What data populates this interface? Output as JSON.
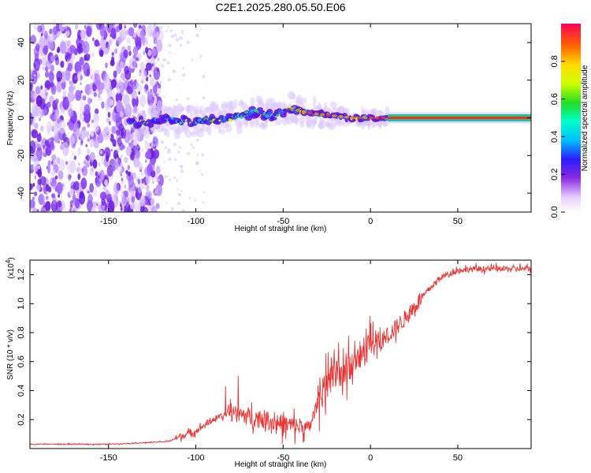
{
  "title": "C2E1.2025.280.05.50.E06",
  "chart_data": [
    {
      "type": "heatmap",
      "name": "spectrogram",
      "xlabel": "Height of straight line (km)",
      "ylabel": "Frequency (Hz)",
      "xlim": [
        -195,
        92
      ],
      "ylim": [
        -50,
        50
      ],
      "x_ticks": [
        -150,
        -100,
        -50,
        0,
        50
      ],
      "x_tick_labels": [
        "-150",
        "-100",
        "-50",
        "0",
        "50"
      ],
      "y_ticks": [
        -40,
        -20,
        0,
        20,
        40
      ],
      "y_tick_labels": [
        "-40",
        "-20",
        "0",
        "20",
        "40"
      ],
      "colorbar": {
        "label": "Normalized spectral amplitude",
        "range": [
          0,
          1
        ],
        "ticks": [
          0,
          0.2,
          0.4,
          0.6,
          0.8
        ],
        "tick_labels": [
          "0.0",
          "0.2",
          "0.4",
          "0.6",
          "0.8"
        ]
      },
      "ridge": {
        "x": [
          -138,
          -120,
          -100,
          -80,
          -65,
          -55,
          -45,
          -38,
          -30,
          -20,
          -10,
          0,
          10,
          20,
          50,
          90
        ],
        "y": [
          -3,
          -1,
          -2,
          0,
          3,
          1,
          5,
          3,
          2,
          1,
          0,
          0,
          0,
          0,
          0,
          0
        ]
      }
    },
    {
      "type": "line",
      "name": "snr",
      "xlabel": "Height of straight line (km)",
      "ylabel": "SNR (10 * v/v)",
      "y_multiplier": "(x10",
      "y_multiplier_exp": "4",
      "y_multiplier_close": ")",
      "xlim": [
        -195,
        92
      ],
      "ylim": [
        0,
        1.3
      ],
      "x_ticks": [
        -150,
        -100,
        -50,
        0,
        50
      ],
      "x_tick_labels": [
        "-150",
        "-100",
        "-50",
        "0",
        "50"
      ],
      "y_ticks": [
        0.2,
        0.4,
        0.6,
        0.8,
        1.0,
        1.2
      ],
      "y_tick_labels": [
        "0.2",
        "0.4",
        "0.6",
        "0.8",
        "1.0",
        "1.2"
      ],
      "series": [
        {
          "name": "SNR",
          "color": "#ee3333",
          "x": [
            -195,
            -170,
            -150,
            -130,
            -115,
            -110,
            -100,
            -90,
            -80,
            -70,
            -60,
            -50,
            -40,
            -35,
            -30,
            -25,
            -20,
            -15,
            -10,
            -5,
            0,
            10,
            20,
            30,
            40,
            50,
            60,
            70,
            80,
            92
          ],
          "y": [
            0.03,
            0.03,
            0.03,
            0.04,
            0.05,
            0.08,
            0.12,
            0.2,
            0.25,
            0.22,
            0.2,
            0.17,
            0.15,
            0.14,
            0.33,
            0.45,
            0.5,
            0.55,
            0.6,
            0.65,
            0.68,
            0.78,
            0.9,
            1.05,
            1.18,
            1.23,
            1.24,
            1.24,
            1.24,
            1.24
          ]
        }
      ]
    }
  ]
}
